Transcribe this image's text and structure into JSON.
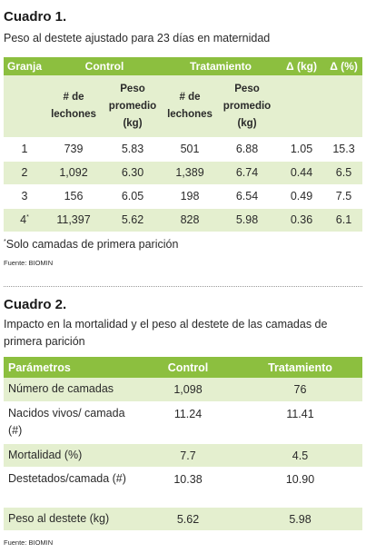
{
  "cuadro1": {
    "title": "Cuadro 1.",
    "subtitle": "Peso al destete ajustado para 23 días en maternidad",
    "headers": {
      "granja": "Granja",
      "control": "Control",
      "tratamiento": "Tratamiento",
      "delta_kg": "Δ (kg)",
      "delta_pct": "Δ (%)"
    },
    "subheaders": {
      "lechones_l1": "# de",
      "lechones_l2": "lechones",
      "peso_l1": "Peso",
      "peso_l2": "promedio",
      "peso_l3": "(kg)"
    },
    "rows": [
      {
        "granja": "1",
        "c_lech": "739",
        "c_peso": "5.83",
        "t_lech": "501",
        "t_peso": "6.88",
        "d_kg": "1.05",
        "d_pct": "15.3"
      },
      {
        "granja": "2",
        "c_lech": "1,092",
        "c_peso": "6.30",
        "t_lech": "1,389",
        "t_peso": "6.74",
        "d_kg": "0.44",
        "d_pct": "6.5"
      },
      {
        "granja": "3",
        "c_lech": "156",
        "c_peso": "6.05",
        "t_lech": "198",
        "t_peso": "6.54",
        "d_kg": "0.49",
        "d_pct": "7.5"
      },
      {
        "granja": "4",
        "c_lech": "11,397",
        "c_peso": "5.62",
        "t_lech": "828",
        "t_peso": "5.98",
        "d_kg": "0.36",
        "d_pct": "6.1"
      }
    ],
    "row4_marker": "*",
    "footnote": "Solo camadas de primera parición",
    "footnote_marker": "*",
    "source": "Fuente: BIOMIN"
  },
  "cuadro2": {
    "title": "Cuadro 2.",
    "subtitle": "Impacto en la mortalidad y el peso al destete de las camadas de primera parición",
    "headers": {
      "parametros": "Parámetros",
      "control": "Control",
      "tratamiento": "Tratamiento"
    },
    "rows": [
      {
        "param": "Número de camadas",
        "control": "1,098",
        "tratamiento": "76"
      },
      {
        "param": "Nacidos vivos/ camada (#)",
        "control": "11.24",
        "tratamiento": "11.41"
      },
      {
        "param": "Mortalidad (%)",
        "control": "7.7",
        "tratamiento": "4.5"
      },
      {
        "param": "Destetados/camada (#)",
        "control": "10.38",
        "tratamiento": "10.90"
      },
      {
        "param": "Peso al destete (kg)",
        "control": "5.62",
        "tratamiento": "5.98"
      }
    ],
    "source": "Fuente: BIOMIN"
  }
}
